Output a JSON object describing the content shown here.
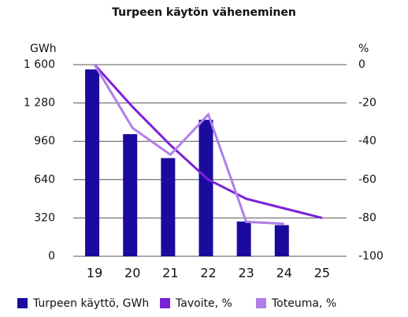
{
  "chart_data": {
    "type": "bar",
    "title": "Turpeen käytön väheneminen",
    "ylabel": "GWh",
    "y2label": "%",
    "categories": [
      "19",
      "20",
      "21",
      "22",
      "23",
      "24",
      "25"
    ],
    "series": [
      {
        "name": "Turpeen käyttö, GWh",
        "type": "bar",
        "color": "#1a0a9e",
        "values": [
          1560,
          1020,
          820,
          1140,
          290,
          260,
          null
        ]
      },
      {
        "name": "Tavoite, %",
        "type": "line",
        "axis": "y2",
        "color": "#7b22d6",
        "values": [
          0,
          -22,
          -42,
          -60,
          -70,
          -75,
          -80
        ]
      },
      {
        "name": "Toteuma, %",
        "type": "line",
        "axis": "y2",
        "color": "#b07fe8",
        "values": [
          0,
          -33,
          -47,
          -26,
          -82,
          -83,
          null
        ]
      }
    ],
    "ylim": [
      0,
      1600
    ],
    "yticks": [
      0,
      320,
      640,
      960,
      {
        "value": 1280,
        "label": "1 280"
      },
      {
        "value": 1600,
        "label": "1 600"
      }
    ],
    "y2lim": [
      -100,
      0
    ],
    "y2ticks": [
      -100,
      -80,
      -60,
      -40,
      -20,
      0
    ],
    "grid": true,
    "legend": "bottom"
  }
}
